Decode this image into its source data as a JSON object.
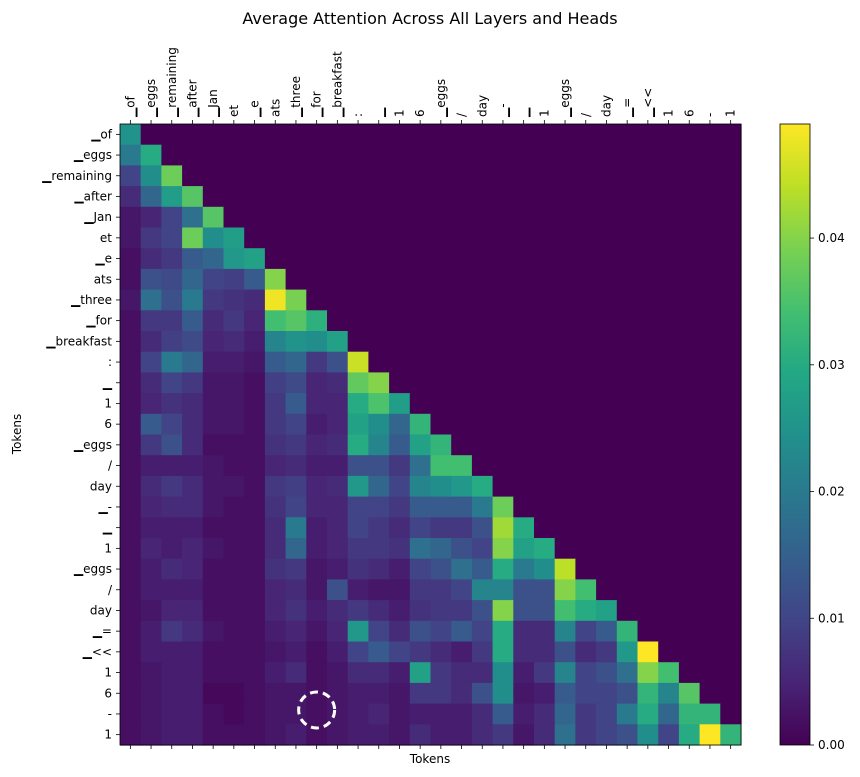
{
  "chart_data": {
    "type": "heatmap",
    "title": "Average Attention Across All Layers and Heads",
    "xlabel": "Tokens",
    "ylabel": "Tokens",
    "tokens": [
      "▁of",
      "▁eggs",
      "▁remaining",
      "▁after",
      "▁Jan",
      "et",
      "▁e",
      "ats",
      "▁three",
      "▁for",
      "▁breakfast",
      ":",
      "▁",
      "1",
      "6",
      "▁eggs",
      "/",
      "day",
      "▁-",
      "▁",
      "1",
      "▁eggs",
      "/",
      "day",
      "▁=",
      "▁<<",
      "1",
      "6",
      "-",
      "1"
    ],
    "colormap": "viridis",
    "colorbar": {
      "range": [
        0,
        0.049
      ],
      "ticks": [
        0.0,
        0.01,
        0.02,
        0.03,
        0.04
      ],
      "tick_labels": [
        "0.00",
        "0.01",
        "0.02",
        "0.03",
        "0.04"
      ]
    },
    "mask": "causal (upper triangle = 0)",
    "annotation": "dashed white circle around row '-' (index 28), column '▁for' (index 9)",
    "values": [
      [
        0.025
      ],
      [
        0.02,
        0.03
      ],
      [
        0.01,
        0.024,
        0.038
      ],
      [
        0.006,
        0.016,
        0.027,
        0.036
      ],
      [
        0.003,
        0.005,
        0.01,
        0.018,
        0.036
      ],
      [
        0.003,
        0.008,
        0.01,
        0.038,
        0.024,
        0.027
      ],
      [
        0.002,
        0.006,
        0.008,
        0.014,
        0.016,
        0.026,
        0.028
      ],
      [
        0.002,
        0.012,
        0.011,
        0.016,
        0.01,
        0.009,
        0.014,
        0.04
      ],
      [
        0.003,
        0.018,
        0.012,
        0.02,
        0.008,
        0.007,
        0.006,
        0.048,
        0.039
      ],
      [
        0.002,
        0.008,
        0.008,
        0.014,
        0.006,
        0.008,
        0.005,
        0.034,
        0.036,
        0.031
      ],
      [
        0.002,
        0.006,
        0.009,
        0.011,
        0.005,
        0.006,
        0.004,
        0.022,
        0.025,
        0.024,
        0.028
      ],
      [
        0.002,
        0.01,
        0.02,
        0.016,
        0.004,
        0.004,
        0.003,
        0.014,
        0.016,
        0.008,
        0.012,
        0.045
      ],
      [
        0.002,
        0.006,
        0.01,
        0.008,
        0.003,
        0.003,
        0.002,
        0.009,
        0.011,
        0.005,
        0.006,
        0.037,
        0.04
      ],
      [
        0.002,
        0.005,
        0.007,
        0.006,
        0.003,
        0.003,
        0.002,
        0.008,
        0.014,
        0.005,
        0.005,
        0.03,
        0.035,
        0.027
      ],
      [
        0.002,
        0.014,
        0.01,
        0.006,
        0.003,
        0.003,
        0.002,
        0.008,
        0.01,
        0.004,
        0.005,
        0.028,
        0.024,
        0.016,
        0.032
      ],
      [
        0.002,
        0.008,
        0.012,
        0.006,
        0.002,
        0.002,
        0.002,
        0.007,
        0.008,
        0.005,
        0.006,
        0.03,
        0.022,
        0.014,
        0.028,
        0.032
      ],
      [
        0.002,
        0.004,
        0.004,
        0.004,
        0.003,
        0.002,
        0.002,
        0.005,
        0.006,
        0.004,
        0.004,
        0.012,
        0.012,
        0.008,
        0.018,
        0.034,
        0.034
      ],
      [
        0.002,
        0.006,
        0.008,
        0.006,
        0.003,
        0.003,
        0.002,
        0.008,
        0.009,
        0.005,
        0.006,
        0.026,
        0.016,
        0.01,
        0.022,
        0.024,
        0.026,
        0.03
      ],
      [
        0.002,
        0.005,
        0.006,
        0.006,
        0.003,
        0.002,
        0.002,
        0.007,
        0.01,
        0.005,
        0.005,
        0.01,
        0.01,
        0.008,
        0.014,
        0.014,
        0.014,
        0.02,
        0.038
      ],
      [
        0.002,
        0.004,
        0.004,
        0.004,
        0.002,
        0.002,
        0.002,
        0.006,
        0.02,
        0.004,
        0.005,
        0.01,
        0.008,
        0.006,
        0.01,
        0.008,
        0.008,
        0.012,
        0.042,
        0.03
      ],
      [
        0.002,
        0.005,
        0.004,
        0.005,
        0.003,
        0.002,
        0.002,
        0.006,
        0.016,
        0.004,
        0.005,
        0.008,
        0.008,
        0.007,
        0.018,
        0.016,
        0.012,
        0.01,
        0.04,
        0.028,
        0.03
      ],
      [
        0.002,
        0.004,
        0.006,
        0.005,
        0.002,
        0.002,
        0.002,
        0.007,
        0.008,
        0.003,
        0.004,
        0.007,
        0.006,
        0.004,
        0.01,
        0.012,
        0.018,
        0.014,
        0.03,
        0.02,
        0.024,
        0.044
      ],
      [
        0.002,
        0.004,
        0.004,
        0.004,
        0.002,
        0.002,
        0.002,
        0.005,
        0.006,
        0.003,
        0.012,
        0.004,
        0.003,
        0.003,
        0.008,
        0.008,
        0.01,
        0.022,
        0.022,
        0.012,
        0.012,
        0.04,
        0.034
      ],
      [
        0.002,
        0.003,
        0.005,
        0.005,
        0.002,
        0.002,
        0.002,
        0.005,
        0.007,
        0.004,
        0.006,
        0.008,
        0.006,
        0.004,
        0.007,
        0.008,
        0.008,
        0.012,
        0.04,
        0.012,
        0.012,
        0.034,
        0.03,
        0.028
      ],
      [
        0.002,
        0.004,
        0.008,
        0.006,
        0.003,
        0.002,
        0.002,
        0.004,
        0.005,
        0.003,
        0.005,
        0.026,
        0.01,
        0.006,
        0.012,
        0.01,
        0.014,
        0.01,
        0.03,
        0.006,
        0.006,
        0.022,
        0.01,
        0.014,
        0.032
      ],
      [
        0.002,
        0.004,
        0.004,
        0.004,
        0.002,
        0.002,
        0.002,
        0.003,
        0.004,
        0.002,
        0.004,
        0.01,
        0.014,
        0.01,
        0.008,
        0.006,
        0.004,
        0.008,
        0.03,
        0.006,
        0.006,
        0.012,
        0.006,
        0.008,
        0.026,
        0.049
      ],
      [
        0.002,
        0.003,
        0.004,
        0.004,
        0.002,
        0.002,
        0.002,
        0.004,
        0.006,
        0.002,
        0.003,
        0.006,
        0.006,
        0.004,
        0.028,
        0.008,
        0.006,
        0.006,
        0.024,
        0.004,
        0.008,
        0.022,
        0.01,
        0.012,
        0.018,
        0.04,
        0.034
      ],
      [
        0.002,
        0.003,
        0.004,
        0.004,
        0.001,
        0.001,
        0.002,
        0.003,
        0.003,
        0.002,
        0.003,
        0.004,
        0.004,
        0.003,
        0.008,
        0.008,
        0.006,
        0.012,
        0.024,
        0.003,
        0.004,
        0.014,
        0.01,
        0.01,
        0.012,
        0.032,
        0.022,
        0.036
      ],
      [
        0.002,
        0.003,
        0.004,
        0.004,
        0.002,
        0.001,
        0.002,
        0.003,
        0.003,
        0.002,
        0.003,
        0.004,
        0.005,
        0.003,
        0.004,
        0.004,
        0.004,
        0.006,
        0.014,
        0.004,
        0.006,
        0.016,
        0.008,
        0.01,
        0.02,
        0.03,
        0.016,
        0.032,
        0.032
      ],
      [
        0.002,
        0.003,
        0.004,
        0.004,
        0.002,
        0.002,
        0.002,
        0.003,
        0.004,
        0.002,
        0.003,
        0.004,
        0.004,
        0.003,
        0.006,
        0.004,
        0.004,
        0.006,
        0.008,
        0.003,
        0.006,
        0.018,
        0.008,
        0.01,
        0.012,
        0.024,
        0.01,
        0.03,
        0.049,
        0.032
      ]
    ]
  }
}
